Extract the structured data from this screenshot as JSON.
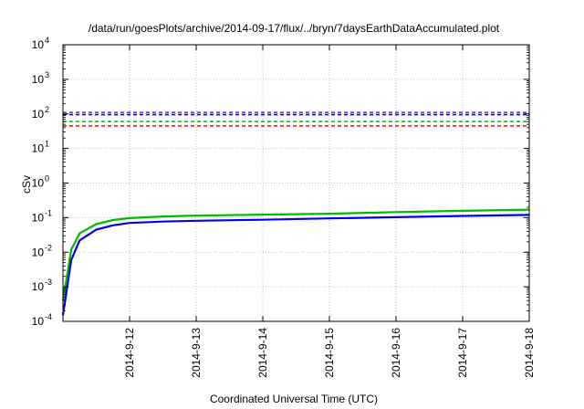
{
  "chart_data": {
    "type": "line",
    "title": "/data/run/goesPlots/archive/2014-09-17/flux/../bryn/7daysEarthDataAccumulated.plot",
    "xlabel": "Coordinated Universal Time (UTC)",
    "ylabel": "cSv",
    "x_scale": "time",
    "y_scale": "log",
    "xlim": [
      "2014-09-11",
      "2014-09-18"
    ],
    "ylim": [
      0.0001,
      10000
    ],
    "grid": true,
    "x_ticks": [
      "2014-9-12",
      "2014-9-13",
      "2014-9-14",
      "2014-9-15",
      "2014-9-16",
      "2014-9-17",
      "2014-9-18"
    ],
    "y_ticks": [
      {
        "value": 0.0001,
        "base": "10",
        "exp": "-4"
      },
      {
        "value": 0.001,
        "base": "10",
        "exp": "-3"
      },
      {
        "value": 0.01,
        "base": "10",
        "exp": "-2"
      },
      {
        "value": 0.1,
        "base": "10",
        "exp": "-1"
      },
      {
        "value": 1,
        "base": "10",
        "exp": "0"
      },
      {
        "value": 10,
        "base": "10",
        "exp": "1"
      },
      {
        "value": 100,
        "base": "10",
        "exp": "2"
      },
      {
        "value": 1000,
        "base": "10",
        "exp": "3"
      },
      {
        "value": 10000,
        "base": "10",
        "exp": "4"
      }
    ],
    "thresholds": [
      {
        "value": 110,
        "color": "#8a2be2",
        "style": "dashed"
      },
      {
        "value": 95,
        "color": "#0000ff",
        "style": "dashed"
      },
      {
        "value": 60,
        "color": "#00cc00",
        "style": "dashed"
      },
      {
        "value": 45,
        "color": "#ff0000",
        "style": "dashed"
      }
    ],
    "series": [
      {
        "color": "#00bb00",
        "x": [
          "2014-09-11T00:00",
          "2014-09-11T03:00",
          "2014-09-11T06:00",
          "2014-09-11T12:00",
          "2014-09-11T18:00",
          "2014-09-12T00:00",
          "2014-09-12T12:00",
          "2014-09-13T00:00",
          "2014-09-14T00:00",
          "2014-09-15T00:00",
          "2014-09-16T00:00",
          "2014-09-17T00:00",
          "2014-09-18T00:00"
        ],
        "y": [
          0.0004,
          0.012,
          0.035,
          0.065,
          0.085,
          0.097,
          0.108,
          0.115,
          0.122,
          0.13,
          0.145,
          0.158,
          0.17
        ]
      },
      {
        "color": "#0000ee",
        "x": [
          "2014-09-11T00:00",
          "2014-09-11T03:00",
          "2014-09-11T06:00",
          "2014-09-11T12:00",
          "2014-09-11T18:00",
          "2014-09-12T00:00",
          "2014-09-12T12:00",
          "2014-09-13T00:00",
          "2014-09-14T00:00",
          "2014-09-15T00:00",
          "2014-09-16T00:00",
          "2014-09-17T00:00",
          "2014-09-18T00:00"
        ],
        "y": [
          0.00015,
          0.006,
          0.022,
          0.045,
          0.06,
          0.07,
          0.077,
          0.081,
          0.087,
          0.095,
          0.103,
          0.112,
          0.12
        ]
      }
    ]
  }
}
